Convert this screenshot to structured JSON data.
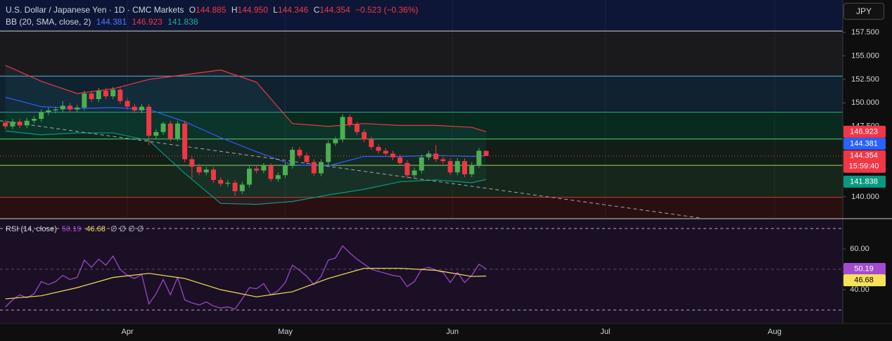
{
  "header": {
    "symbol": "U.S. Dollar / Japanese Yen · 1D · CMC Markets",
    "ohlc": [
      {
        "key": "O",
        "value": "144.885"
      },
      {
        "key": "H",
        "value": "144.950"
      },
      {
        "key": "L",
        "value": "144.346"
      },
      {
        "key": "C",
        "value": "144.354"
      }
    ],
    "change": "−0.523 (−0.36%)",
    "bb_label": "BB (20, SMA, close, 2)",
    "bb_values": [
      "144.381",
      "146.923",
      "141.838"
    ],
    "rsi_label": "RSI (14, close)",
    "rsi_values": [
      "50.19",
      "46.68"
    ],
    "rsi_extra": "∅ ∅ ∅ ∅",
    "currency": "JPY"
  },
  "chart_data": [
    {
      "type": "candlestick",
      "up_color": "#4caf50",
      "down_color": "#f23645",
      "x": [
        -17,
        -16,
        -15,
        -14,
        -13,
        -12,
        -11,
        -10,
        -9,
        -8,
        -7,
        -6,
        -5,
        -4,
        -3,
        -2,
        -1,
        0,
        1,
        2,
        3,
        4,
        5,
        6,
        7,
        8,
        9,
        10,
        11,
        12,
        13,
        14,
        15,
        16,
        17,
        18,
        19,
        20,
        21,
        22,
        23,
        24,
        25,
        26,
        27,
        28,
        29,
        30,
        31,
        32,
        33,
        34,
        35,
        36,
        37,
        38,
        39,
        40,
        41,
        42,
        43,
        44,
        45,
        46,
        47,
        48,
        49,
        50
      ],
      "open": [
        147.9,
        147.5,
        148.0,
        147.6,
        148.1,
        148.3,
        149.0,
        149.2,
        149.3,
        149.7,
        149.3,
        149.5,
        151.0,
        150.4,
        151.3,
        150.7,
        151.4,
        150.2,
        149.6,
        149.2,
        149.6,
        146.5,
        146.9,
        147.8,
        146.2,
        147.8,
        144.0,
        143.2,
        142.6,
        142.9,
        141.8,
        141.4,
        141.5,
        140.6,
        141.3,
        143.0,
        142.8,
        143.3,
        141.9,
        142.3,
        143.3,
        145.0,
        144.4,
        143.7,
        142.5,
        143.7,
        145.7,
        146.1,
        148.5,
        147.7,
        146.9,
        146.1,
        145.3,
        144.9,
        144.6,
        144.2,
        143.6,
        142.3,
        142.8,
        144.2,
        144.6,
        144.0,
        143.8,
        142.6,
        143.8,
        142.4,
        143.4,
        144.885
      ],
      "high": [
        148.2,
        148.3,
        148.3,
        148.4,
        148.6,
        149.3,
        149.5,
        149.6,
        150.2,
        150.0,
        149.8,
        151.3,
        151.3,
        151.6,
        151.6,
        151.7,
        151.7,
        150.5,
        149.9,
        149.9,
        149.9,
        147.2,
        148.0,
        148.1,
        148.1,
        148.1,
        144.3,
        143.5,
        143.2,
        143.2,
        142.1,
        141.8,
        141.8,
        141.6,
        143.3,
        143.3,
        143.6,
        143.6,
        142.6,
        143.6,
        145.3,
        145.3,
        144.7,
        144.0,
        144.0,
        146.0,
        146.4,
        148.8,
        148.8,
        148.0,
        147.2,
        146.4,
        145.6,
        145.2,
        144.9,
        144.5,
        143.9,
        143.1,
        144.5,
        144.9,
        145.5,
        144.3,
        144.1,
        144.1,
        144.1,
        143.7,
        145.2,
        144.95
      ],
      "low": [
        147.2,
        147.2,
        147.3,
        147.3,
        147.8,
        148.0,
        148.7,
        148.9,
        149.0,
        149.0,
        149.0,
        149.2,
        150.1,
        150.1,
        150.4,
        150.4,
        149.9,
        149.3,
        148.9,
        148.9,
        145.5,
        146.2,
        146.6,
        145.9,
        145.9,
        143.7,
        142.0,
        142.3,
        142.3,
        141.5,
        141.1,
        141.1,
        140.1,
        140.3,
        141.0,
        142.5,
        142.5,
        141.6,
        141.6,
        142.0,
        143.0,
        144.1,
        143.4,
        142.2,
        142.2,
        143.4,
        145.4,
        145.8,
        147.4,
        146.6,
        145.8,
        145.0,
        144.6,
        144.3,
        143.9,
        143.3,
        142.0,
        142.0,
        142.5,
        143.9,
        143.7,
        143.5,
        142.3,
        142.3,
        142.1,
        142.1,
        143.1,
        144.346
      ],
      "close": [
        147.5,
        148.0,
        147.6,
        148.1,
        148.3,
        149.0,
        149.2,
        149.3,
        149.7,
        149.3,
        149.5,
        151.0,
        150.4,
        151.3,
        150.7,
        151.4,
        150.2,
        149.6,
        149.2,
        149.6,
        146.5,
        146.9,
        147.8,
        146.2,
        147.8,
        144.0,
        143.2,
        142.6,
        142.9,
        141.8,
        141.4,
        141.5,
        140.6,
        141.3,
        143.0,
        142.8,
        143.3,
        141.9,
        142.3,
        143.3,
        145.0,
        144.4,
        143.7,
        142.5,
        143.7,
        145.7,
        146.1,
        148.5,
        147.7,
        146.9,
        146.1,
        145.3,
        144.9,
        144.6,
        144.2,
        143.6,
        142.3,
        142.8,
        144.2,
        144.6,
        144.0,
        143.8,
        142.6,
        143.8,
        142.4,
        143.4,
        144.9,
        144.354
      ],
      "countdown": "15:59:40",
      "xlim": [
        -17.75,
        99.7
      ],
      "xticks": [
        {
          "value": 0,
          "label": "Apr"
        },
        {
          "value": 22,
          "label": "May"
        },
        {
          "value": 45.3,
          "label": "Jun"
        },
        {
          "value": 66.6,
          "label": "Jul"
        },
        {
          "value": 90.2,
          "label": "Aug"
        }
      ],
      "ylim": [
        137.75,
        160.95
      ],
      "yticks": [
        {
          "value": 157.5,
          "label": "157.500"
        },
        {
          "value": 155,
          "label": "155.000"
        },
        {
          "value": 152.5,
          "label": "152.500"
        },
        {
          "value": 150,
          "label": "150.000"
        },
        {
          "value": 147.5,
          "label": "147.500"
        },
        {
          "value": 140,
          "label": "140.000"
        }
      ],
      "band_fill": "rgba(40,150,160,0.10)",
      "bands": [
        {
          "color": "#f23645",
          "x": [
            -17,
            -12,
            -7,
            -2,
            3,
            8,
            13,
            18,
            23,
            28,
            33,
            38,
            43,
            48,
            50
          ],
          "values": [
            154.0,
            152.3,
            151.0,
            151.5,
            152.5,
            153.0,
            153.5,
            152.2,
            147.8,
            147.5,
            147.8,
            147.6,
            147.6,
            147.4,
            146.923
          ]
        },
        {
          "color": "#2962ff",
          "x": [
            -17,
            -12,
            -7,
            -2,
            3,
            8,
            13,
            18,
            23,
            28,
            33,
            38,
            43,
            48,
            50
          ],
          "values": [
            150.6,
            149.6,
            149.4,
            149.5,
            149.3,
            148.0,
            146.3,
            144.8,
            143.4,
            143.3,
            144.3,
            144.3,
            144.4,
            144.3,
            144.381
          ]
        },
        {
          "color": "#089981",
          "x": [
            -17,
            -12,
            -7,
            -2,
            3,
            8,
            13,
            18,
            23,
            28,
            33,
            38,
            43,
            48,
            50
          ],
          "values": [
            147.0,
            146.6,
            146.8,
            146.8,
            146.0,
            142.5,
            139.3,
            139.2,
            139.5,
            140.2,
            140.8,
            141.6,
            141.8,
            141.5,
            141.838
          ]
        }
      ],
      "zones": [
        {
          "from": 157.65,
          "to": 160.95,
          "color": "#0d1636"
        },
        {
          "from": 152.85,
          "to": 157.65,
          "color": "#1a1a1c"
        },
        {
          "from": 149.0,
          "to": 152.85,
          "color": "#10212f"
        },
        {
          "from": 146.15,
          "to": 149.0,
          "color": "#082a1f"
        },
        {
          "from": 143.35,
          "to": 146.15,
          "color": "#111d16"
        },
        {
          "from": 139.95,
          "to": 143.35,
          "color": "#16261a"
        },
        {
          "from": 137.75,
          "to": 139.95,
          "color": "#2a0f11"
        }
      ],
      "levels": [
        {
          "value": 157.65,
          "color": "#cfcfcf"
        },
        {
          "value": 152.85,
          "color": "#5ab0e0"
        },
        {
          "value": 149.0,
          "color": "#2aa888"
        },
        {
          "value": 146.15,
          "color": "#5fcf6f"
        },
        {
          "value": 143.35,
          "color": "#a8d060"
        },
        {
          "value": 139.95,
          "color": "#e03030"
        }
      ],
      "trendline": {
        "color": "#aaaaaa",
        "x": [
          -17.75,
          79.8
        ],
        "values": [
          148.1,
          137.75
        ]
      }
    },
    {
      "type": "line",
      "background": "#1b0f25",
      "ylim": [
        23.45,
        74.5
      ],
      "yticks": [
        {
          "value": 60,
          "label": "60.00"
        },
        {
          "value": 40,
          "label": "40.00"
        }
      ],
      "levels": [
        70,
        50,
        30
      ],
      "series": [
        {
          "color": "#a24bd1",
          "x": [
            -17,
            -16,
            -15,
            -14,
            -13,
            -12,
            -11,
            -10,
            -9,
            -8,
            -7,
            -6,
            -5,
            -4,
            -3,
            -2,
            -1,
            0,
            1,
            2,
            3,
            4,
            5,
            6,
            7,
            8,
            9,
            10,
            11,
            12,
            13,
            14,
            15,
            16,
            17,
            18,
            19,
            20,
            21,
            22,
            23,
            24,
            25,
            26,
            27,
            28,
            29,
            30,
            31,
            32,
            33,
            34,
            35,
            36,
            37,
            38,
            39,
            40,
            41,
            42,
            43,
            44,
            45,
            46,
            47,
            48,
            49,
            50
          ],
          "values": [
            31.5,
            35,
            37.5,
            36,
            38,
            44,
            42.5,
            44,
            47,
            45,
            46,
            54.5,
            51,
            55,
            52,
            56.5,
            50,
            47,
            45.5,
            47.5,
            33,
            38,
            45,
            37.5,
            46,
            35,
            33.5,
            32.5,
            34,
            32,
            31,
            31.5,
            30.5,
            35.5,
            41,
            40.5,
            43,
            37.5,
            39.5,
            43.5,
            52,
            49.5,
            46.5,
            42.5,
            46.5,
            54.5,
            55.5,
            61.5,
            58,
            55,
            52.5,
            50,
            49,
            48,
            47,
            46.5,
            41.5,
            44,
            50,
            51,
            49.5,
            48.5,
            43.5,
            48.5,
            43.5,
            47,
            52.5,
            50.19
          ]
        },
        {
          "color": "#f5e15a",
          "x": [
            -17,
            -12,
            -7,
            -2,
            3,
            8,
            13,
            18,
            23,
            28,
            33,
            38,
            43,
            48,
            50
          ],
          "values": [
            35.5,
            37,
            41,
            46,
            48,
            45.5,
            40,
            36.5,
            39,
            45.5,
            50.5,
            50.5,
            49.5,
            46.5,
            46.68
          ]
        }
      ]
    }
  ]
}
